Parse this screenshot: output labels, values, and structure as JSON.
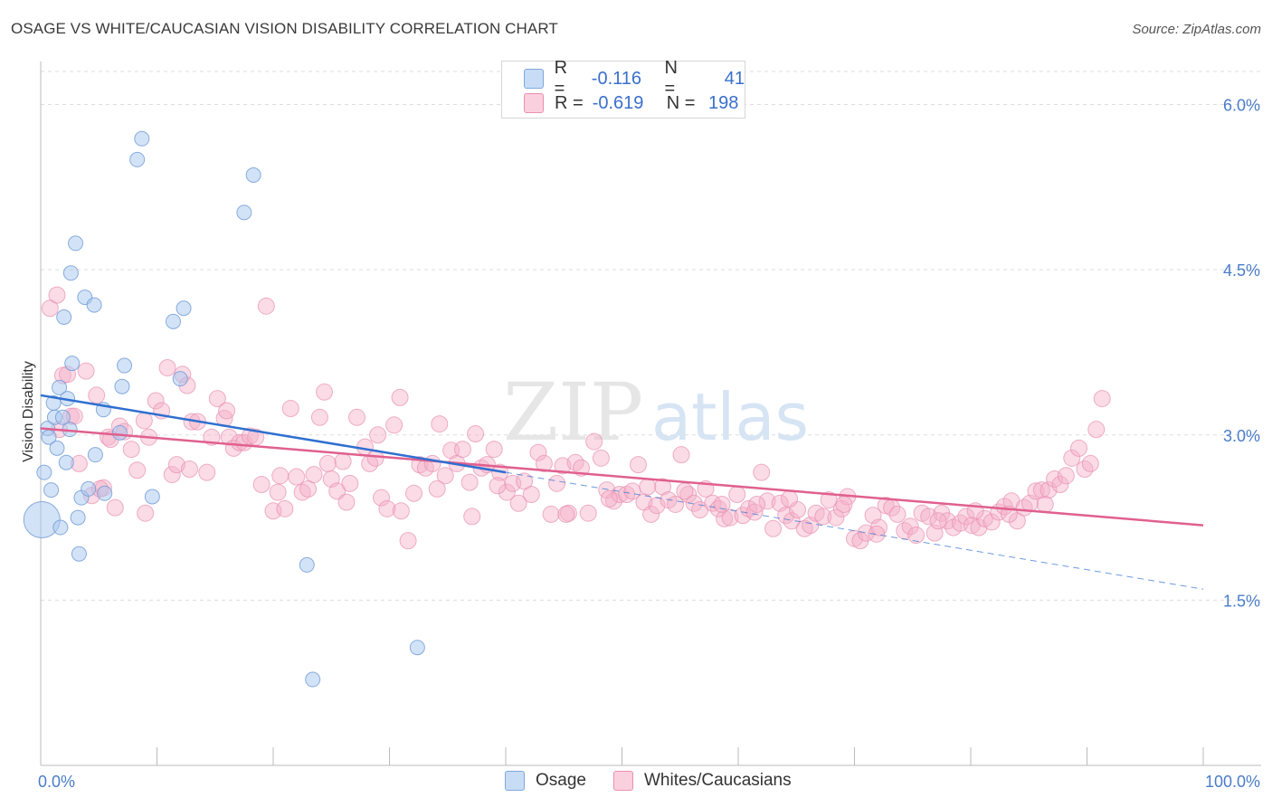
{
  "header": {
    "title": "OSAGE VS WHITE/CAUCASIAN VISION DISABILITY CORRELATION CHART",
    "source": "Source: ZipAtlas.com"
  },
  "watermark": {
    "zip": "ZIP",
    "atlas": "atlas"
  },
  "legend": {
    "rows": [
      {
        "r_label": "R =",
        "r_value": "-0.116",
        "n_label": "N =",
        "n_value": "41",
        "color": "#a8c8f0"
      },
      {
        "r_label": "R =",
        "r_value": "-0.619",
        "n_label": "N =",
        "n_value": "198",
        "color": "#f5b0c8"
      }
    ]
  },
  "bottom_legend": {
    "osage": "Osage",
    "whites": "Whites/Caucasians"
  },
  "chart_data": {
    "type": "scatter",
    "title": "OSAGE VS WHITE/CAUCASIAN VISION DISABILITY CORRELATION CHART",
    "xlabel": "",
    "ylabel": "Vision Disability",
    "xlim": [
      0,
      100
    ],
    "ylim": [
      0,
      6.3
    ],
    "x_tick_labels": [
      "0.0%",
      "100.0%"
    ],
    "y_ticks": [
      1.5,
      3.0,
      4.5,
      6.0
    ],
    "y_tick_labels": [
      "1.5%",
      "3.0%",
      "4.5%",
      "6.0%"
    ],
    "grid": true,
    "legend_position": "top-center",
    "colors": {
      "osage": "#a8c8f0",
      "osage_line": "#2f6fd0",
      "whites": "#f5b0c8",
      "whites_line": "#e0608e",
      "axis_text": "#4a7cc9"
    },
    "series": [
      {
        "name": "Osage",
        "r": -0.116,
        "n": 41,
        "trend": {
          "x": [
            0,
            40
          ],
          "y": [
            3.36,
            2.66
          ]
        },
        "trend_extended": {
          "x": [
            40,
            100
          ],
          "y": [
            2.66,
            1.6
          ]
        },
        "points": [
          [
            0.1,
            2.23
          ],
          [
            0.3,
            2.66
          ],
          [
            0.6,
            3.06
          ],
          [
            0.7,
            2.98
          ],
          [
            0.9,
            2.5
          ],
          [
            1.1,
            3.29
          ],
          [
            1.2,
            3.16
          ],
          [
            1.4,
            2.88
          ],
          [
            1.6,
            3.43
          ],
          [
            1.7,
            2.16
          ],
          [
            1.9,
            3.16
          ],
          [
            2.0,
            4.07
          ],
          [
            2.2,
            2.75
          ],
          [
            2.3,
            3.33
          ],
          [
            2.5,
            3.05
          ],
          [
            2.6,
            4.47
          ],
          [
            2.7,
            3.65
          ],
          [
            3.0,
            4.74
          ],
          [
            3.2,
            2.25
          ],
          [
            3.3,
            1.92
          ],
          [
            3.5,
            2.43
          ],
          [
            3.8,
            4.25
          ],
          [
            4.1,
            2.51
          ],
          [
            4.6,
            4.18
          ],
          [
            4.7,
            2.82
          ],
          [
            5.4,
            3.23
          ],
          [
            5.5,
            2.47
          ],
          [
            6.8,
            3.02
          ],
          [
            7.0,
            3.44
          ],
          [
            7.2,
            3.63
          ],
          [
            8.3,
            5.5
          ],
          [
            8.7,
            5.69
          ],
          [
            9.6,
            2.44
          ],
          [
            11.4,
            4.03
          ],
          [
            12.0,
            3.51
          ],
          [
            12.3,
            4.15
          ],
          [
            17.5,
            5.02
          ],
          [
            18.3,
            5.36
          ],
          [
            22.9,
            1.82
          ],
          [
            23.4,
            0.78
          ],
          [
            32.4,
            1.07
          ]
        ]
      },
      {
        "name": "Whites/Caucasians",
        "r": -0.619,
        "n": 198,
        "trend": {
          "x": [
            0,
            100
          ],
          "y": [
            3.06,
            2.18
          ]
        },
        "points": [
          [
            0.8,
            4.15
          ],
          [
            1.4,
            4.27
          ],
          [
            1.9,
            3.54
          ],
          [
            2.3,
            3.55
          ],
          [
            2.6,
            3.17
          ],
          [
            3.3,
            2.74
          ],
          [
            3.9,
            3.58
          ],
          [
            4.4,
            2.45
          ],
          [
            4.8,
            3.36
          ],
          [
            5.4,
            2.52
          ],
          [
            5.8,
            2.98
          ],
          [
            6.4,
            2.34
          ],
          [
            6.8,
            3.08
          ],
          [
            7.2,
            3.03
          ],
          [
            7.8,
            2.87
          ],
          [
            8.3,
            2.68
          ],
          [
            8.9,
            3.13
          ],
          [
            9.3,
            2.98
          ],
          [
            9.9,
            3.31
          ],
          [
            10.4,
            3.22
          ],
          [
            10.9,
            3.61
          ],
          [
            11.3,
            2.64
          ],
          [
            11.7,
            2.73
          ],
          [
            12.2,
            3.55
          ],
          [
            12.6,
            3.45
          ],
          [
            13.0,
            3.12
          ],
          [
            13.5,
            3.12
          ],
          [
            14.3,
            2.66
          ],
          [
            14.7,
            2.98
          ],
          [
            15.2,
            3.33
          ],
          [
            15.8,
            3.15
          ],
          [
            16.2,
            2.98
          ],
          [
            16.6,
            2.88
          ],
          [
            17.1,
            2.93
          ],
          [
            17.5,
            2.93
          ],
          [
            18.0,
            2.99
          ],
          [
            18.5,
            2.98
          ],
          [
            19.0,
            2.55
          ],
          [
            19.4,
            4.17
          ],
          [
            20.0,
            2.31
          ],
          [
            20.4,
            2.48
          ],
          [
            21.0,
            2.33
          ],
          [
            21.5,
            3.24
          ],
          [
            22.0,
            2.62
          ],
          [
            22.5,
            2.48
          ],
          [
            23.0,
            2.51
          ],
          [
            23.5,
            2.64
          ],
          [
            24.0,
            3.16
          ],
          [
            24.4,
            3.39
          ],
          [
            25.0,
            2.6
          ],
          [
            25.5,
            2.49
          ],
          [
            26.0,
            2.76
          ],
          [
            26.6,
            2.56
          ],
          [
            27.2,
            3.16
          ],
          [
            27.9,
            2.89
          ],
          [
            28.3,
            2.74
          ],
          [
            28.8,
            2.79
          ],
          [
            29.3,
            2.43
          ],
          [
            29.8,
            2.33
          ],
          [
            30.4,
            3.09
          ],
          [
            30.9,
            3.34
          ],
          [
            31.6,
            2.04
          ],
          [
            32.1,
            2.47
          ],
          [
            32.6,
            2.73
          ],
          [
            33.1,
            2.7
          ],
          [
            33.7,
            2.74
          ],
          [
            34.3,
            3.1
          ],
          [
            34.8,
            2.63
          ],
          [
            35.3,
            2.86
          ],
          [
            35.8,
            2.74
          ],
          [
            36.3,
            2.87
          ],
          [
            36.9,
            2.57
          ],
          [
            37.4,
            3.01
          ],
          [
            37.9,
            2.7
          ],
          [
            38.4,
            2.73
          ],
          [
            39.0,
            2.87
          ],
          [
            39.5,
            2.66
          ],
          [
            40.1,
            2.48
          ],
          [
            40.6,
            2.56
          ],
          [
            41.1,
            2.38
          ],
          [
            41.6,
            2.58
          ],
          [
            42.2,
            2.46
          ],
          [
            42.8,
            2.84
          ],
          [
            43.3,
            2.74
          ],
          [
            43.9,
            2.28
          ],
          [
            44.4,
            2.56
          ],
          [
            44.9,
            2.72
          ],
          [
            45.4,
            2.29
          ],
          [
            46.0,
            2.75
          ],
          [
            46.5,
            2.7
          ],
          [
            47.1,
            2.29
          ],
          [
            47.6,
            2.94
          ],
          [
            48.2,
            2.79
          ],
          [
            48.7,
            2.5
          ],
          [
            49.3,
            2.4
          ],
          [
            49.8,
            2.46
          ],
          [
            50.4,
            2.46
          ],
          [
            50.9,
            2.49
          ],
          [
            51.4,
            2.73
          ],
          [
            51.9,
            2.39
          ],
          [
            52.5,
            2.28
          ],
          [
            53.0,
            2.36
          ],
          [
            53.5,
            2.53
          ],
          [
            54.0,
            2.41
          ],
          [
            54.6,
            2.37
          ],
          [
            55.1,
            2.82
          ],
          [
            55.7,
            2.46
          ],
          [
            56.2,
            2.38
          ],
          [
            56.7,
            2.32
          ],
          [
            57.2,
            2.51
          ],
          [
            57.8,
            2.38
          ],
          [
            58.3,
            2.33
          ],
          [
            58.8,
            2.24
          ],
          [
            59.3,
            2.25
          ],
          [
            59.9,
            2.46
          ],
          [
            60.4,
            2.27
          ],
          [
            60.9,
            2.33
          ],
          [
            61.4,
            2.3
          ],
          [
            62.0,
            2.66
          ],
          [
            62.5,
            2.4
          ],
          [
            63.0,
            2.15
          ],
          [
            63.6,
            2.38
          ],
          [
            64.1,
            2.27
          ],
          [
            64.6,
            2.22
          ],
          [
            65.1,
            2.32
          ],
          [
            65.7,
            2.15
          ],
          [
            66.2,
            2.18
          ],
          [
            66.7,
            2.29
          ],
          [
            67.3,
            2.26
          ],
          [
            67.8,
            2.41
          ],
          [
            68.4,
            2.25
          ],
          [
            68.9,
            2.33
          ],
          [
            69.4,
            2.44
          ],
          [
            70.0,
            2.06
          ],
          [
            70.5,
            2.04
          ],
          [
            71.0,
            2.11
          ],
          [
            71.6,
            2.27
          ],
          [
            72.1,
            2.16
          ],
          [
            72.7,
            2.36
          ],
          [
            73.2,
            2.34
          ],
          [
            73.7,
            2.28
          ],
          [
            74.3,
            2.13
          ],
          [
            74.8,
            2.17
          ],
          [
            75.3,
            2.09
          ],
          [
            75.8,
            2.29
          ],
          [
            76.4,
            2.26
          ],
          [
            76.9,
            2.11
          ],
          [
            77.5,
            2.29
          ],
          [
            78.0,
            2.22
          ],
          [
            78.5,
            2.16
          ],
          [
            79.1,
            2.2
          ],
          [
            79.6,
            2.26
          ],
          [
            80.1,
            2.18
          ],
          [
            80.7,
            2.16
          ],
          [
            81.2,
            2.24
          ],
          [
            81.8,
            2.21
          ],
          [
            82.4,
            2.3
          ],
          [
            82.9,
            2.35
          ],
          [
            83.5,
            2.4
          ],
          [
            84.0,
            2.22
          ],
          [
            84.6,
            2.34
          ],
          [
            85.1,
            2.38
          ],
          [
            85.6,
            2.49
          ],
          [
            86.1,
            2.5
          ],
          [
            86.7,
            2.5
          ],
          [
            87.2,
            2.6
          ],
          [
            87.7,
            2.55
          ],
          [
            88.2,
            2.63
          ],
          [
            88.7,
            2.79
          ],
          [
            89.3,
            2.88
          ],
          [
            89.8,
            2.69
          ],
          [
            90.3,
            2.74
          ],
          [
            90.8,
            3.05
          ],
          [
            91.3,
            3.33
          ],
          [
            1.6,
            3.05
          ],
          [
            2.9,
            3.17
          ],
          [
            5.1,
            2.51
          ],
          [
            6.0,
            2.96
          ],
          [
            9.0,
            2.29
          ],
          [
            12.8,
            2.69
          ],
          [
            16.0,
            3.22
          ],
          [
            20.6,
            2.63
          ],
          [
            24.7,
            2.74
          ],
          [
            26.3,
            2.39
          ],
          [
            29.0,
            3.0
          ],
          [
            31.0,
            2.31
          ],
          [
            34.1,
            2.51
          ],
          [
            37.1,
            2.26
          ],
          [
            39.3,
            2.54
          ],
          [
            45.2,
            2.28
          ],
          [
            48.9,
            2.42
          ],
          [
            52.2,
            2.53
          ],
          [
            55.4,
            2.49
          ],
          [
            58.6,
            2.37
          ],
          [
            61.6,
            2.37
          ],
          [
            64.4,
            2.42
          ],
          [
            69.1,
            2.37
          ],
          [
            71.9,
            2.1
          ],
          [
            77.2,
            2.22
          ],
          [
            80.4,
            2.31
          ],
          [
            83.3,
            2.28
          ],
          [
            86.4,
            2.37
          ]
        ]
      }
    ]
  }
}
